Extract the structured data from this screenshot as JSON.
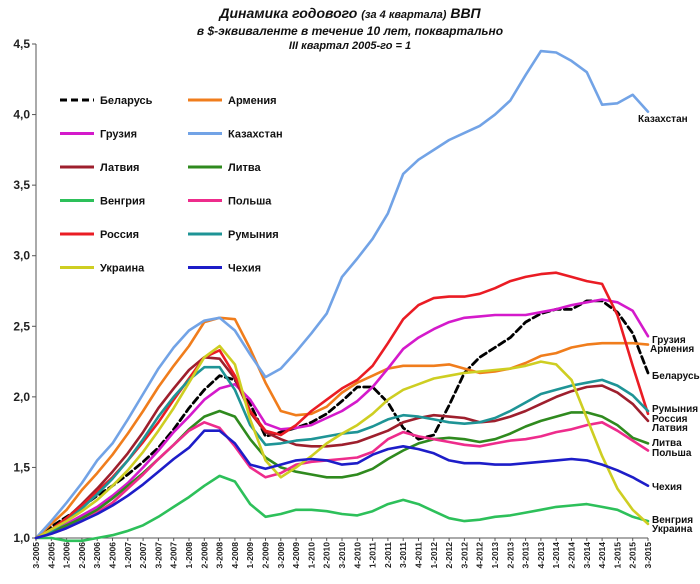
{
  "title_main": "Динамика годового",
  "title_small": "(за 4 квартала)",
  "title_end": "ВВП",
  "subtitle1": "в $-эквиваленте  в течение  10 лет,  поквартально",
  "subtitle2": "III квартал 2005-го = 1",
  "chart_data": {
    "type": "line",
    "x": [
      "3-2005",
      "4-2005",
      "1-2006",
      "2-2006",
      "3-2006",
      "4-2006",
      "1-2007",
      "2-2007",
      "3-2007",
      "4-2007",
      "1-2008",
      "2-2008",
      "3-2008",
      "4-2008",
      "1-2009",
      "2-2009",
      "3-2009",
      "4-2009",
      "1-2010",
      "2-2010",
      "3-2010",
      "4-2010",
      "1-2011",
      "2-2011",
      "3-2011",
      "4-2011",
      "1-2012",
      "2-2012",
      "3-2012",
      "4-2012",
      "1-2013",
      "2-2013",
      "3-2013",
      "4-2013",
      "1-2014",
      "2-2014",
      "3-2014",
      "4-2014",
      "1-2015",
      "2-2015",
      "3-2015"
    ],
    "ylim": [
      1.0,
      4.5
    ],
    "yticks": [
      "1,0",
      "1,5",
      "2,0",
      "2,5",
      "3,0",
      "3,5",
      "4,0",
      "4,5"
    ],
    "legend_placement": "top-left",
    "grid": false,
    "series": [
      {
        "name": "Беларусь",
        "color": "#000000",
        "dash": true,
        "end_label": "Беларусь",
        "values": [
          1.0,
          1.08,
          1.15,
          1.22,
          1.3,
          1.37,
          1.45,
          1.54,
          1.64,
          1.77,
          1.92,
          2.05,
          2.15,
          2.12,
          1.95,
          1.72,
          1.75,
          1.78,
          1.82,
          1.88,
          1.97,
          2.07,
          2.07,
          1.96,
          1.78,
          1.7,
          1.73,
          1.94,
          2.17,
          2.28,
          2.35,
          2.42,
          2.53,
          2.59,
          2.62,
          2.62,
          2.68,
          2.68,
          2.6,
          2.45,
          2.17
        ]
      },
      {
        "name": "Армения",
        "color": "#F07D1C",
        "end_label": "Армения",
        "values": [
          1.0,
          1.1,
          1.2,
          1.34,
          1.46,
          1.59,
          1.74,
          1.9,
          2.07,
          2.22,
          2.36,
          2.53,
          2.56,
          2.55,
          2.34,
          2.1,
          1.9,
          1.87,
          1.88,
          1.93,
          2.03,
          2.1,
          2.15,
          2.2,
          2.22,
          2.22,
          2.22,
          2.23,
          2.2,
          2.17,
          2.18,
          2.2,
          2.24,
          2.29,
          2.31,
          2.35,
          2.37,
          2.38,
          2.38,
          2.38,
          2.37
        ]
      },
      {
        "name": "Грузия",
        "color": "#D41ACB",
        "end_label": "Грузия",
        "values": [
          1.0,
          1.05,
          1.1,
          1.16,
          1.22,
          1.3,
          1.39,
          1.5,
          1.62,
          1.75,
          1.86,
          1.98,
          2.06,
          2.09,
          1.98,
          1.81,
          1.77,
          1.78,
          1.8,
          1.85,
          1.9,
          1.97,
          2.07,
          2.2,
          2.34,
          2.42,
          2.48,
          2.53,
          2.56,
          2.57,
          2.58,
          2.58,
          2.58,
          2.6,
          2.62,
          2.65,
          2.67,
          2.69,
          2.67,
          2.61,
          2.43
        ]
      },
      {
        "name": "Казахстан",
        "color": "#72A3E6",
        "end_label": "Казахстан",
        "values": [
          1.0,
          1.12,
          1.25,
          1.39,
          1.55,
          1.67,
          1.84,
          2.02,
          2.2,
          2.35,
          2.47,
          2.54,
          2.56,
          2.47,
          2.3,
          2.14,
          2.2,
          2.32,
          2.45,
          2.59,
          2.85,
          2.98,
          3.12,
          3.3,
          3.58,
          3.68,
          3.75,
          3.82,
          3.87,
          3.92,
          4.0,
          4.1,
          4.28,
          4.45,
          4.44,
          4.38,
          4.3,
          4.07,
          4.08,
          4.14,
          4.02
        ]
      },
      {
        "name": "Латвия",
        "color": "#9E1F2D",
        "end_label": "Латвия",
        "values": [
          1.0,
          1.06,
          1.14,
          1.24,
          1.35,
          1.47,
          1.6,
          1.75,
          1.92,
          2.06,
          2.19,
          2.28,
          2.27,
          2.13,
          1.89,
          1.75,
          1.7,
          1.66,
          1.65,
          1.65,
          1.66,
          1.68,
          1.72,
          1.76,
          1.82,
          1.85,
          1.87,
          1.86,
          1.85,
          1.82,
          1.83,
          1.86,
          1.9,
          1.95,
          2.0,
          2.04,
          2.07,
          2.08,
          2.03,
          1.95,
          1.83
        ]
      },
      {
        "name": "Литва",
        "color": "#2F8A1E",
        "end_label": "Литва",
        "values": [
          1.0,
          1.04,
          1.09,
          1.14,
          1.2,
          1.28,
          1.37,
          1.46,
          1.56,
          1.66,
          1.77,
          1.86,
          1.9,
          1.86,
          1.7,
          1.57,
          1.5,
          1.47,
          1.45,
          1.43,
          1.43,
          1.45,
          1.49,
          1.56,
          1.62,
          1.67,
          1.7,
          1.71,
          1.7,
          1.68,
          1.7,
          1.74,
          1.79,
          1.83,
          1.86,
          1.89,
          1.89,
          1.86,
          1.8,
          1.71,
          1.67
        ]
      },
      {
        "name": "Венгрия",
        "color": "#2DC05A",
        "end_label": "Венгрия",
        "values": [
          1.0,
          1.0,
          0.98,
          0.98,
          1.0,
          1.02,
          1.05,
          1.09,
          1.15,
          1.22,
          1.29,
          1.37,
          1.44,
          1.4,
          1.24,
          1.15,
          1.17,
          1.2,
          1.2,
          1.19,
          1.17,
          1.16,
          1.19,
          1.24,
          1.27,
          1.24,
          1.19,
          1.14,
          1.12,
          1.13,
          1.15,
          1.16,
          1.18,
          1.2,
          1.22,
          1.23,
          1.24,
          1.22,
          1.2,
          1.15,
          1.12
        ]
      },
      {
        "name": "Польша",
        "color": "#EE2C8C",
        "end_label": "Польша",
        "values": [
          1.0,
          1.03,
          1.07,
          1.12,
          1.18,
          1.25,
          1.35,
          1.45,
          1.56,
          1.66,
          1.76,
          1.82,
          1.78,
          1.65,
          1.5,
          1.43,
          1.46,
          1.52,
          1.54,
          1.55,
          1.56,
          1.57,
          1.61,
          1.7,
          1.75,
          1.72,
          1.7,
          1.68,
          1.66,
          1.65,
          1.67,
          1.69,
          1.7,
          1.72,
          1.75,
          1.77,
          1.8,
          1.82,
          1.76,
          1.69,
          1.62
        ]
      },
      {
        "name": "Россия",
        "color": "#EA1C24",
        "end_label": "Россия",
        "values": [
          1.0,
          1.06,
          1.14,
          1.23,
          1.33,
          1.43,
          1.55,
          1.68,
          1.82,
          1.98,
          2.13,
          2.28,
          2.33,
          2.15,
          1.9,
          1.76,
          1.73,
          1.8,
          1.9,
          1.98,
          2.06,
          2.12,
          2.22,
          2.38,
          2.55,
          2.65,
          2.7,
          2.71,
          2.71,
          2.73,
          2.77,
          2.82,
          2.85,
          2.87,
          2.88,
          2.85,
          2.82,
          2.8,
          2.58,
          2.22,
          1.88
        ]
      },
      {
        "name": "Румыния",
        "color": "#1E9496",
        "end_label": "Румыния",
        "values": [
          1.0,
          1.05,
          1.12,
          1.21,
          1.31,
          1.42,
          1.55,
          1.7,
          1.86,
          2.0,
          2.12,
          2.21,
          2.21,
          2.05,
          1.8,
          1.66,
          1.67,
          1.69,
          1.7,
          1.72,
          1.74,
          1.75,
          1.79,
          1.84,
          1.87,
          1.86,
          1.84,
          1.82,
          1.81,
          1.82,
          1.85,
          1.9,
          1.96,
          2.02,
          2.05,
          2.08,
          2.1,
          2.12,
          2.08,
          2.01,
          1.9
        ]
      },
      {
        "name": "Украина",
        "color": "#CECE22",
        "end_label": "Украина",
        "values": [
          1.0,
          1.06,
          1.12,
          1.19,
          1.27,
          1.37,
          1.48,
          1.61,
          1.76,
          1.92,
          2.1,
          2.28,
          2.36,
          2.23,
          1.84,
          1.55,
          1.43,
          1.5,
          1.58,
          1.67,
          1.74,
          1.8,
          1.88,
          1.98,
          2.05,
          2.09,
          2.13,
          2.15,
          2.17,
          2.18,
          2.19,
          2.2,
          2.22,
          2.25,
          2.23,
          2.12,
          1.85,
          1.58,
          1.35,
          1.2,
          1.1
        ]
      },
      {
        "name": "Чехия",
        "color": "#1D1DC8",
        "end_label": "Чехия",
        "values": [
          1.0,
          1.03,
          1.07,
          1.12,
          1.17,
          1.23,
          1.3,
          1.38,
          1.47,
          1.56,
          1.64,
          1.76,
          1.76,
          1.67,
          1.52,
          1.49,
          1.52,
          1.55,
          1.56,
          1.55,
          1.52,
          1.53,
          1.59,
          1.63,
          1.65,
          1.63,
          1.6,
          1.55,
          1.53,
          1.53,
          1.52,
          1.52,
          1.53,
          1.54,
          1.55,
          1.56,
          1.55,
          1.52,
          1.48,
          1.43,
          1.37
        ]
      }
    ]
  }
}
